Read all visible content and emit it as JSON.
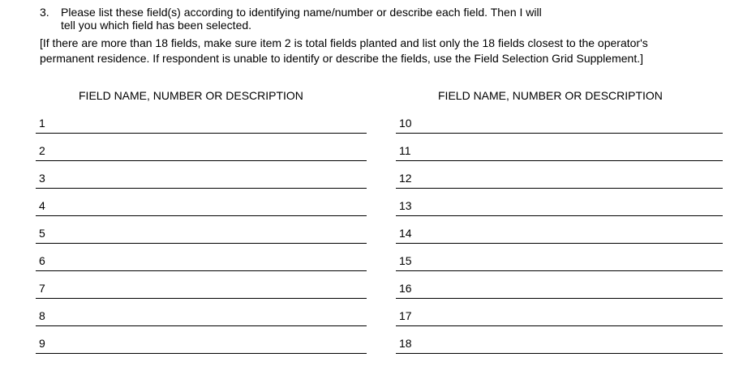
{
  "question": {
    "number": "3.",
    "line1": "Please list these field(s) according to identifying name/number or describe each field.  Then I will",
    "line2": "tell you which field has been selected."
  },
  "instruction": {
    "line1": "[If there are more than 18 fields, make sure item 2 is total fields planted and list only the 18 fields closest to the operator's",
    "line2": "permanent residence.  If respondent is unable to identify or describe the fields, use the Field Selection Grid Supplement.]"
  },
  "columns": [
    {
      "header": "FIELD NAME, NUMBER OR DESCRIPTION",
      "rows": [
        "1",
        "2",
        "3",
        "4",
        "5",
        "6",
        "7",
        "8",
        "9"
      ]
    },
    {
      "header": "FIELD NAME, NUMBER OR DESCRIPTION",
      "rows": [
        "10",
        "11",
        "12",
        "13",
        "14",
        "15",
        "16",
        "17",
        "18"
      ]
    }
  ]
}
